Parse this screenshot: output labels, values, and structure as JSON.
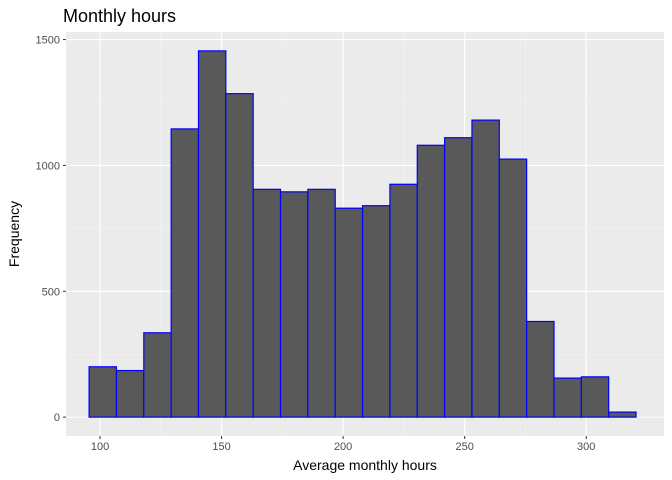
{
  "chart_data": {
    "type": "bar",
    "subtype": "histogram",
    "title": "Monthly hours",
    "xlabel": "Average monthly hours",
    "ylabel": "Frequency",
    "bin_edges": [
      95.5,
      106.75,
      118,
      129.25,
      140.5,
      151.75,
      163,
      174.25,
      185.5,
      196.75,
      208,
      219.25,
      230.5,
      241.75,
      253,
      264.25,
      275.5,
      286.75,
      298,
      309.25,
      320.5
    ],
    "values": [
      200,
      185,
      335,
      1145,
      1455,
      1285,
      905,
      895,
      905,
      830,
      840,
      925,
      1080,
      1110,
      1180,
      1025,
      380,
      155,
      160,
      20
    ],
    "xlim": [
      86,
      332
    ],
    "ylim": [
      -75,
      1530
    ],
    "x_ticks": [
      100,
      150,
      200,
      250,
      300
    ],
    "y_ticks": [
      0,
      500,
      1000,
      1500
    ],
    "colors": {
      "bar_fill": "#595959",
      "bar_outline": "#0000ff",
      "panel_background": "#ebebeb",
      "grid_major": "#ffffff",
      "grid_minor": "#f4f4f4"
    },
    "grid": true
  }
}
